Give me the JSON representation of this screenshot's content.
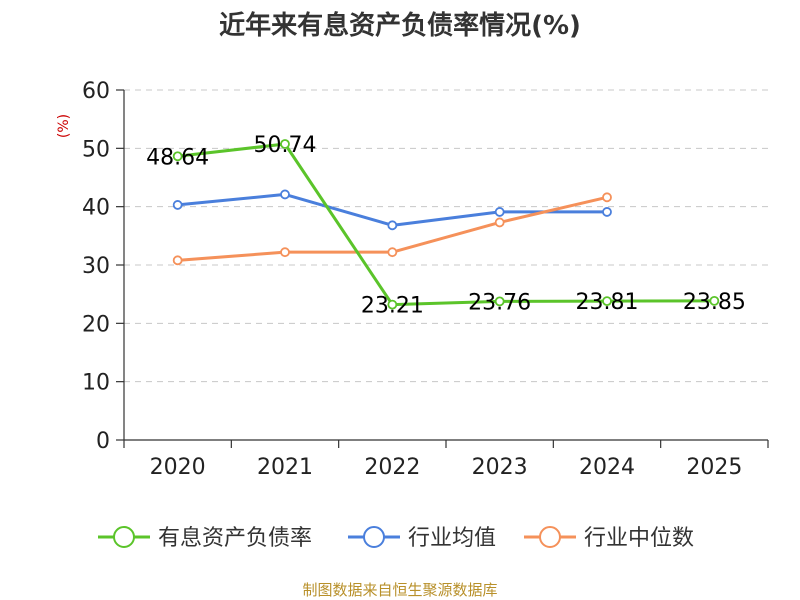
{
  "chart_data": {
    "type": "line",
    "title": "近年来有息资产负债率情况(%)",
    "unit_label": "(%)",
    "categories": [
      "2020",
      "2021",
      "2022",
      "2023",
      "2024",
      "2025"
    ],
    "ylim": [
      0,
      60
    ],
    "yticks": [
      "0",
      "10",
      "20",
      "30",
      "40",
      "50",
      "60"
    ],
    "grid": true,
    "legend_position": "bottom",
    "series": [
      {
        "name": "有息资产负债率",
        "color": "#5bc42a",
        "values": [
          48.64,
          50.74,
          23.21,
          23.76,
          23.81,
          23.85
        ],
        "labels": [
          "48.64",
          "50.74",
          "23.21",
          "23.76",
          "23.81",
          "23.85"
        ]
      },
      {
        "name": "行业均值",
        "color": "#4a7fdc",
        "values": [
          40.3,
          42.1,
          36.8,
          39.1,
          39.1,
          null
        ]
      },
      {
        "name": "行业中位数",
        "color": "#f5915a",
        "values": [
          30.8,
          32.2,
          32.2,
          37.3,
          41.6,
          null
        ]
      }
    ],
    "source": "制图数据来自恒生聚源数据库"
  }
}
